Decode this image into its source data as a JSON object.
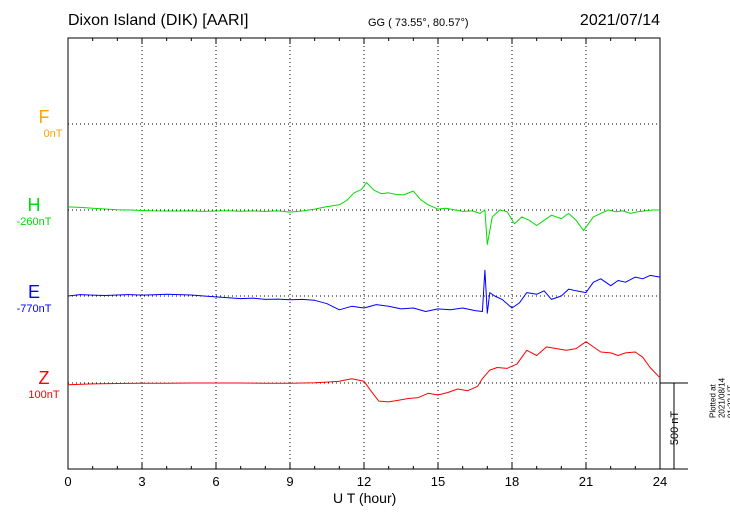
{
  "header": {
    "station": "Dixon Island (DIK)  [AARI]",
    "coords": "GG ( 73.55°,  80.57°)",
    "date": "2021/07/14"
  },
  "components": [
    {
      "name": "F",
      "baseline": "0nT",
      "color": "#ffa500"
    },
    {
      "name": "H",
      "baseline": "-260nT",
      "color": "#00dd00"
    },
    {
      "name": "E",
      "baseline": "-770nT",
      "color": "#0000ff"
    },
    {
      "name": "Z",
      "baseline": "100nT",
      "color": "#ff0000"
    }
  ],
  "x_ticks": [
    "0",
    "3",
    "6",
    "9",
    "12",
    "15",
    "18",
    "21",
    "24"
  ],
  "x_label": "U T (hour)",
  "scale_label": "500 nT",
  "plotted_note": "Plotted at 2021/08/14 01:32 UT",
  "chart_data": {
    "type": "line",
    "title": "Dixon Island (DIK)  [AARI]",
    "xlabel": "U T (hour)",
    "ylabel": "",
    "xlim": [
      0,
      24
    ],
    "grid": true,
    "scale_bar_nT": 500,
    "series": [
      {
        "name": "H",
        "baseline_nT": -260,
        "color": "#00dd00",
        "x": [
          0,
          0.5,
          1,
          1.5,
          2,
          2.5,
          3,
          3.5,
          4,
          4.5,
          5,
          5.5,
          6,
          6.5,
          7,
          7.5,
          8,
          8.5,
          9,
          9.5,
          10,
          10.5,
          11,
          11.3,
          11.6,
          11.9,
          12.1,
          12.4,
          12.7,
          13,
          13.3,
          13.6,
          14,
          14.3,
          14.6,
          15,
          15.3,
          15.6,
          16,
          16.4,
          16.7,
          16.9,
          17.0,
          17.2,
          17.5,
          17.8,
          18.1,
          18.4,
          18.7,
          19,
          19.3,
          19.6,
          20,
          20.3,
          20.6,
          20.9,
          21.0,
          21.3,
          21.6,
          21.9,
          22.2,
          22.5,
          22.8,
          23.1,
          23.4,
          23.7,
          24
        ],
        "y": [
          18,
          15,
          10,
          6,
          2,
          0,
          -3,
          -5,
          -6,
          -6,
          -5,
          -8,
          -6,
          -4,
          -7,
          -5,
          -8,
          -5,
          -12,
          -6,
          5,
          20,
          30,
          55,
          100,
          120,
          160,
          115,
          95,
          100,
          90,
          88,
          110,
          60,
          30,
          5,
          10,
          3,
          -8,
          -5,
          -20,
          0,
          -200,
          -40,
          0,
          -10,
          -80,
          -40,
          -60,
          -90,
          -60,
          -30,
          -50,
          -20,
          -60,
          -120,
          -100,
          -40,
          -20,
          0,
          -10,
          -5,
          -20,
          -10,
          -5,
          0,
          0
        ]
      },
      {
        "name": "E",
        "baseline_nT": -770,
        "color": "#0000ff",
        "x": [
          0,
          0.5,
          1,
          1.5,
          2,
          2.5,
          3,
          3.5,
          4,
          4.5,
          5,
          5.5,
          6,
          6.5,
          7,
          7.5,
          8,
          8.5,
          9,
          9.5,
          10,
          10.5,
          11,
          11.5,
          12,
          12.5,
          13,
          13.5,
          14,
          14.5,
          15,
          15.5,
          16,
          16.5,
          16.8,
          16.9,
          17.0,
          17.1,
          17.3,
          17.6,
          18,
          18.3,
          18.6,
          19,
          19.3,
          19.6,
          20,
          20.3,
          20.6,
          21,
          21.3,
          21.6,
          22,
          22.3,
          22.6,
          23,
          23.3,
          23.6,
          24
        ],
        "y": [
          0,
          8,
          5,
          3,
          6,
          8,
          5,
          7,
          10,
          8,
          6,
          0,
          -5,
          -10,
          -15,
          -12,
          -20,
          -18,
          -22,
          -20,
          -25,
          -45,
          -80,
          -60,
          -70,
          -50,
          -60,
          -75,
          -70,
          -90,
          -75,
          -80,
          -70,
          -85,
          -90,
          150,
          -100,
          20,
          0,
          -20,
          -70,
          -40,
          20,
          10,
          30,
          -20,
          0,
          40,
          30,
          20,
          80,
          100,
          60,
          90,
          80,
          110,
          100,
          120,
          110
        ]
      },
      {
        "name": "Z",
        "baseline_nT": 100,
        "color": "#ff0000",
        "x": [
          0,
          1,
          2,
          3,
          4,
          5,
          6,
          7,
          8,
          9,
          10,
          10.5,
          11,
          11.5,
          12.0,
          12.3,
          12.6,
          13,
          13.4,
          13.8,
          14.2,
          14.6,
          15,
          15.4,
          15.8,
          16.2,
          16.6,
          16.8,
          17.1,
          17.4,
          17.8,
          18.2,
          18.6,
          19,
          19.4,
          19.8,
          20.2,
          20.6,
          21,
          21.3,
          21.6,
          22,
          22.3,
          22.6,
          23,
          23.3,
          23.6,
          24
        ],
        "y": [
          -10,
          -5,
          -3,
          -2,
          -1,
          0,
          0,
          0,
          -2,
          -1,
          2,
          5,
          10,
          25,
          10,
          -50,
          -105,
          -110,
          -100,
          -90,
          -85,
          -60,
          -70,
          -55,
          -35,
          -45,
          -20,
          25,
          75,
          90,
          85,
          110,
          190,
          160,
          210,
          200,
          190,
          200,
          240,
          210,
          180,
          175,
          160,
          175,
          180,
          150,
          90,
          30
        ]
      }
    ]
  }
}
